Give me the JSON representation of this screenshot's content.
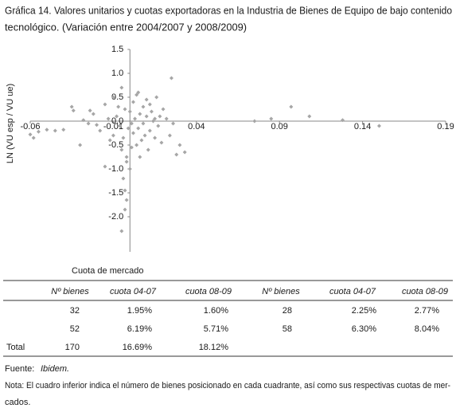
{
  "title": [
    "Gráfica 14. Valores unitarios y cuotas exportadoras en la Industria de Bienes de Equipo de bajo contenido",
    "tecnológico. (Variación entre  2004/2007 y 2008/2009)"
  ],
  "chart_data": {
    "type": "scatter",
    "color": "#a6a6a6",
    "x_label": "Cuota de mercado",
    "y_label": "LN (VU esp / VU ue)",
    "xlim": [
      -0.06,
      0.19
    ],
    "xticks": [
      -0.06,
      -0.01,
      0.04,
      0.09,
      0.14,
      0.19
    ],
    "ylim": [
      -2.5,
      1.5
    ],
    "yticks": [
      1.5,
      {
        "value": 1,
        "label": "1.0"
      },
      0.5,
      {
        "value": 0,
        "label": "0.0"
      },
      -0.5,
      {
        "value": -1,
        "label": "-1.0"
      },
      -1.5,
      {
        "value": -2,
        "label": "-2.0"
      }
    ],
    "x": [
      -0.06,
      -0.055,
      -0.05,
      -0.045,
      -0.04,
      -0.035,
      -0.034,
      -0.03,
      -0.028,
      -0.025,
      -0.022,
      -0.02,
      -0.018,
      -0.015,
      -0.015,
      -0.012,
      -0.01,
      -0.01,
      -0.008,
      -0.006,
      -0.005,
      -0.005,
      -0.004,
      -0.003,
      -0.002,
      0,
      0,
      0.001,
      0.002,
      0.002,
      0.003,
      0.004,
      0.005,
      0.005,
      0.006,
      0.007,
      0.008,
      0.008,
      0.009,
      0.01,
      0.01,
      0.011,
      0.012,
      0.013,
      0.014,
      0.015,
      0.016,
      0.017,
      0.018,
      0.019,
      0.02,
      0.022,
      0.024,
      0.025,
      0.026,
      0.028,
      0.03,
      0.033,
      -0.004,
      -0.003,
      -0.002,
      -0.003,
      -0.005,
      -0.002,
      0.075,
      0.085,
      0.097,
      0.108,
      0.128,
      0.15,
      -0.058,
      -0.024,
      -0.013,
      0.004,
      0.001,
      0.006,
      0.012,
      -0.007,
      0.015,
      -0.001
    ],
    "values": [
      -0.28,
      -0.22,
      -0.18,
      -0.2,
      -0.18,
      0.3,
      0.22,
      -0.5,
      0.02,
      -0.05,
      0.15,
      -0.08,
      -0.2,
      0.35,
      -0.95,
      -0.4,
      0.5,
      -0.3,
      0.1,
      -0.1,
      0.7,
      -0.6,
      -0.35,
      0.25,
      -0.75,
      -1.0,
      0.2,
      -0.05,
      0.4,
      -0.25,
      0.05,
      -0.5,
      0.6,
      -0.15,
      0.15,
      -0.4,
      0.3,
      -0.05,
      -0.3,
      0.45,
      0.1,
      -0.6,
      -0.2,
      0.2,
      0.0,
      -0.35,
      0.5,
      -0.1,
      0.1,
      -0.45,
      0.25,
      0.05,
      -0.3,
      0.9,
      -0.05,
      -0.7,
      -0.5,
      -0.65,
      -1.2,
      -1.45,
      -1.65,
      -1.85,
      -2.3,
      -0.85,
      0.0,
      0.05,
      0.3,
      0.1,
      0.02,
      -0.1,
      -0.35,
      0.22,
      0.05,
      0.55,
      -0.55,
      -0.75,
      0.35,
      0.3,
      0.05,
      -0.15
    ]
  },
  "table": {
    "headers": [
      "Nº bienes",
      "cuota 04-07",
      "cuota 08-09",
      "Nº bienes",
      "cuota 04-07",
      "cuota 08-09"
    ],
    "rows": [
      {
        "cells": [
          "32",
          "1.95%",
          "1.60%",
          "28",
          "2.25%",
          "2.77%"
        ]
      },
      {
        "cells": [
          "52",
          "6.19%",
          "5.71%",
          "58",
          "6.30%",
          "8.04%"
        ]
      },
      {
        "label": "Total",
        "cells": [
          "170",
          "16.69%",
          "18.12%"
        ]
      }
    ]
  },
  "source": {
    "label": "Fuente:",
    "text": "Ibidem."
  },
  "note": [
    "Nota: El cuadro inferior indica el número de bienes posicionado en cada cuadrante, así como sus respectivas cuotas de mer-",
    "cados."
  ]
}
